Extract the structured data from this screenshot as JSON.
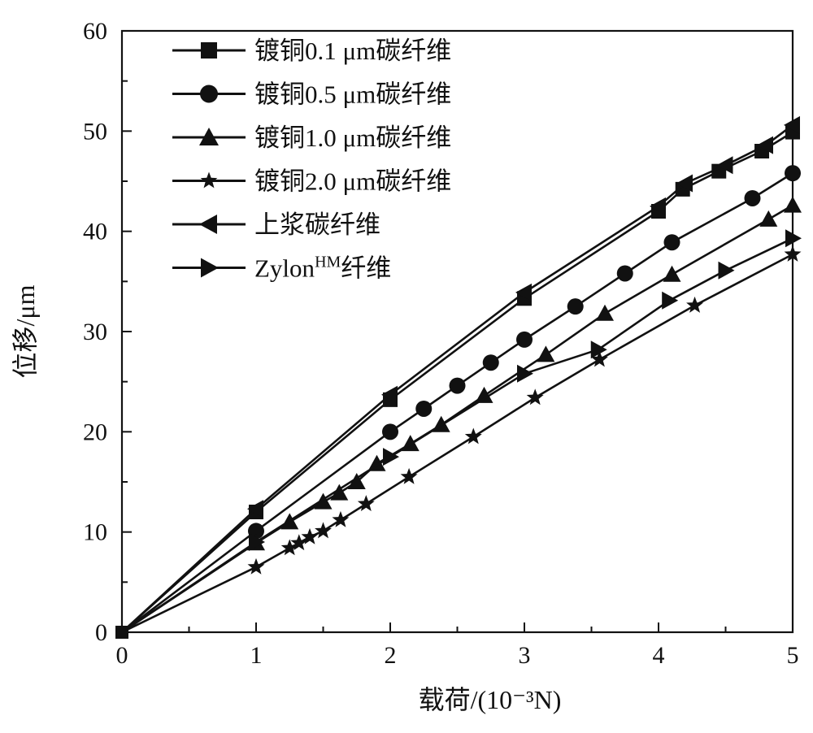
{
  "chart_data": {
    "type": "line",
    "xlabel": "载荷/(10⁻³N)",
    "ylabel": "位移/μm",
    "xlim": [
      0,
      5
    ],
    "ylim": [
      0,
      60
    ],
    "x_ticks": [
      "0",
      "1",
      "2",
      "3",
      "4",
      "5"
    ],
    "y_ticks": [
      "0",
      "10",
      "20",
      "30",
      "40",
      "50",
      "60"
    ],
    "grid": false,
    "legend_position": "top-left",
    "series": [
      {
        "name": "镀铜0.1 μm碳纤维",
        "marker": "square",
        "x": [
          0,
          1,
          2,
          3,
          4,
          4.18,
          4.45,
          4.77,
          5
        ],
        "y": [
          0,
          12,
          23.2,
          33.3,
          42.0,
          44.2,
          46.0,
          48.0,
          49.9
        ]
      },
      {
        "name": "镀铜0.5 μm碳纤维",
        "marker": "circle",
        "x": [
          0,
          1,
          2,
          2.25,
          2.5,
          2.75,
          3,
          3.38,
          3.75,
          4.1,
          4.7,
          5
        ],
        "y": [
          0,
          10.1,
          20.0,
          22.3,
          24.6,
          26.9,
          29.2,
          32.5,
          35.8,
          38.9,
          43.3,
          45.8
        ]
      },
      {
        "name": "镀铜1.0 μm碳纤维",
        "marker": "triangle-up",
        "x": [
          0,
          1,
          1.25,
          1.5,
          1.62,
          1.75,
          1.9,
          2.15,
          2.38,
          2.7,
          3.16,
          3.6,
          4.1,
          4.82,
          5
        ],
        "y": [
          0,
          8.9,
          11.0,
          13.0,
          13.9,
          15.0,
          16.8,
          18.8,
          20.7,
          23.6,
          27.7,
          31.8,
          35.7,
          41.2,
          42.6
        ]
      },
      {
        "name": "镀铜2.0 μm碳纤维",
        "marker": "star",
        "x": [
          0,
          1,
          1.25,
          1.32,
          1.4,
          1.5,
          1.63,
          1.82,
          2.14,
          2.62,
          3.08,
          3.56,
          4.27,
          5
        ],
        "y": [
          0,
          6.5,
          8.4,
          8.9,
          9.5,
          10.1,
          11.2,
          12.8,
          15.5,
          19.5,
          23.4,
          27.2,
          32.6,
          37.7
        ]
      },
      {
        "name": "上浆碳纤维",
        "marker": "triangle-left",
        "x": [
          0,
          1,
          2,
          3,
          4,
          4.2,
          4.5,
          4.8,
          5
        ],
        "y": [
          0,
          12.3,
          23.7,
          33.9,
          42.5,
          44.8,
          46.6,
          48.6,
          50.6
        ]
      },
      {
        "name": "ZylonHM纤维",
        "name_parts": {
          "base": "Zylon",
          "sup": "HM",
          "suffix": "纤维"
        },
        "marker": "triangle-right",
        "x": [
          0,
          1,
          2,
          3,
          3.55,
          4.08,
          4.5,
          5
        ],
        "y": [
          0,
          9.0,
          17.5,
          25.8,
          28.2,
          33.1,
          36.1,
          39.3
        ]
      }
    ]
  }
}
